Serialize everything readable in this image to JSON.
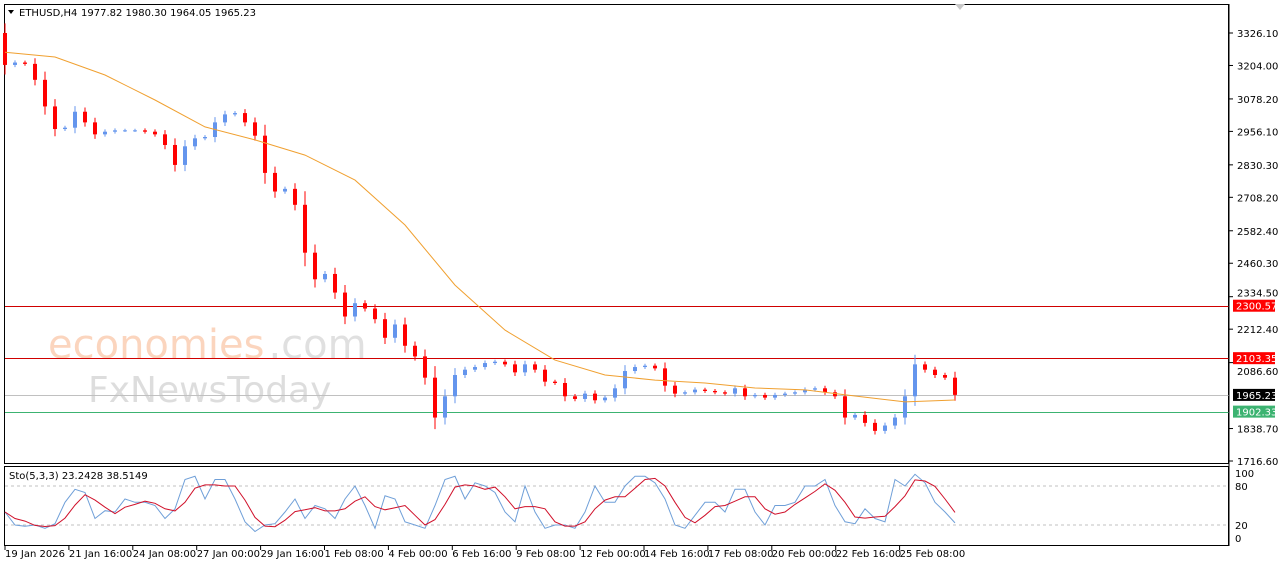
{
  "header": {
    "symbol": "ETHUSD,H4",
    "ohlc": "1977.82 1980.30 1964.05 1965.23"
  },
  "watermark": {
    "part1": "economies",
    "part2": ".com",
    "part3": "FxNewsToday"
  },
  "colors": {
    "bull": "#6495ed",
    "bear": "#ff0000",
    "ma": "#f0a030",
    "stoch_main": "#6f9fd8",
    "stoch_signal": "#d0102a",
    "level_red": "#d00000",
    "level_green": "#3cb371",
    "bid_line": "#c0c0c0"
  },
  "chart_data": [
    {
      "type": "candlestick",
      "symbol": "ETHUSD",
      "timeframe": "H4",
      "ylim": [
        1716.6,
        3326.1
      ],
      "y_ticks": [
        "3326.10",
        "3204.00",
        "3078.20",
        "2956.10",
        "2830.30",
        "2708.20",
        "2582.40",
        "2460.30",
        "2334.50",
        "2212.40",
        "2086.60",
        "1838.70",
        "1716.60"
      ],
      "x_ticks": [
        "19 Jan 2026",
        "21 Jan 16:00",
        "24 Jan 08:00",
        "27 Jan 00:00",
        "29 Jan 16:00",
        "1 Feb 08:00",
        "4 Feb 00:00",
        "6 Feb 16:00",
        "9 Feb 08:00",
        "12 Feb 00:00",
        "14 Feb 16:00",
        "17 Feb 08:00",
        "20 Feb 00:00",
        "22 Feb 16:00",
        "25 Feb 08:00"
      ],
      "first_open": 3326.1,
      "closes": [
        3206,
        3215,
        3210,
        3150,
        3050,
        2965,
        2970,
        3030,
        2990,
        2945,
        2955,
        2960,
        2960,
        2960,
        2955,
        2945,
        2905,
        2830,
        2900,
        2930,
        2935,
        2990,
        3020,
        3025,
        2990,
        2940,
        2800,
        2730,
        2740,
        2680,
        2500,
        2400,
        2420,
        2350,
        2260,
        2310,
        2290,
        2250,
        2180,
        2230,
        2150,
        2110,
        2030,
        1880,
        1960,
        2040,
        2060,
        2070,
        2085,
        2090,
        2080,
        2050,
        2080,
        2060,
        2015,
        2010,
        1960,
        1950,
        1970,
        1945,
        1955,
        1990,
        2055,
        2070,
        2075,
        2065,
        2000,
        1970,
        1975,
        1985,
        1980,
        1975,
        1970,
        1990,
        1960,
        1965,
        1955,
        1965,
        1970,
        1975,
        1985,
        1990,
        1975,
        1960,
        1880,
        1890,
        1860,
        1830,
        1850,
        1880,
        1960,
        2080,
        2060,
        2040,
        2030,
        1965.23
      ],
      "moving_average": [
        3254,
        3236,
        3168,
        3074,
        2973,
        2924,
        2867,
        2773,
        2604,
        2378,
        2209,
        2096,
        2040,
        2021,
        2010,
        1991,
        1984,
        1961,
        1939,
        1946
      ],
      "levels": [
        {
          "label": "2300.57",
          "value": 2300.57,
          "color": "#ff0000"
        },
        {
          "label": "2103.35",
          "value": 2103.35,
          "color": "#ff0000"
        },
        {
          "label": "1965.23",
          "value": 1965.23,
          "color": "#000000"
        },
        {
          "label": "1902.33",
          "value": 1902.33,
          "color": "#3cb371"
        }
      ]
    },
    {
      "type": "line",
      "title": "Sto(5,3,3) 23.2428 38.5149",
      "ylim": [
        0,
        100
      ],
      "y_ticks": [
        "100",
        "80",
        "20",
        "0"
      ],
      "levels": [
        80,
        20
      ],
      "main": [
        40,
        20,
        18,
        20,
        15,
        22,
        55,
        75,
        70,
        30,
        42,
        40,
        60,
        55,
        55,
        50,
        30,
        45,
        90,
        95,
        60,
        90,
        90,
        60,
        25,
        10,
        20,
        22,
        40,
        60,
        30,
        50,
        45,
        30,
        60,
        80,
        50,
        15,
        65,
        60,
        25,
        20,
        15,
        50,
        90,
        95,
        60,
        85,
        80,
        70,
        40,
        25,
        80,
        40,
        15,
        20,
        20,
        15,
        40,
        80,
        55,
        55,
        80,
        95,
        95,
        85,
        60,
        20,
        15,
        35,
        55,
        55,
        40,
        75,
        75,
        40,
        20,
        50,
        50,
        55,
        80,
        80,
        90,
        50,
        25,
        22,
        45,
        30,
        25,
        90,
        80,
        98,
        85,
        55,
        40,
        23.24
      ]
    }
  ]
}
